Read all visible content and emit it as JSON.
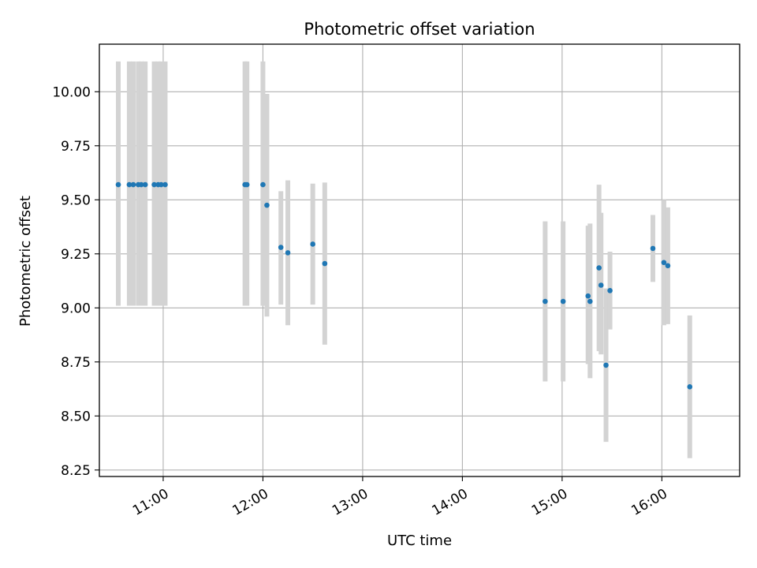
{
  "chart_data": {
    "type": "scatter",
    "title": "Photometric offset variation",
    "xlabel": "UTC time",
    "ylabel": "Photometric offset",
    "x_unit": "hours (UTC)",
    "xlim": [
      10.36,
      16.78
    ],
    "ylim": [
      8.22,
      10.22
    ],
    "grid": true,
    "x_ticks": [
      {
        "value": 11,
        "label": "11:00"
      },
      {
        "value": 12,
        "label": "12:00"
      },
      {
        "value": 13,
        "label": "13:00"
      },
      {
        "value": 14,
        "label": "14:00"
      },
      {
        "value": 15,
        "label": "15:00"
      },
      {
        "value": 16,
        "label": "16:00"
      }
    ],
    "y_ticks": [
      {
        "value": 8.25,
        "label": "8.25"
      },
      {
        "value": 8.5,
        "label": "8.50"
      },
      {
        "value": 8.75,
        "label": "8.75"
      },
      {
        "value": 9.0,
        "label": "9.00"
      },
      {
        "value": 9.25,
        "label": "9.25"
      },
      {
        "value": 9.5,
        "label": "9.50"
      },
      {
        "value": 9.75,
        "label": "9.75"
      },
      {
        "value": 10.0,
        "label": "10.00"
      }
    ],
    "marker_color": "#1f77b4",
    "errorbar_color": "#d3d3d3",
    "points": [
      {
        "x": 10.55,
        "y": 9.57,
        "yerr_low": 9.01,
        "yerr_high": 10.14
      },
      {
        "x": 10.66,
        "y": 9.57,
        "yerr_low": 9.01,
        "yerr_high": 10.14
      },
      {
        "x": 10.7,
        "y": 9.57,
        "yerr_low": 9.01,
        "yerr_high": 10.14
      },
      {
        "x": 10.75,
        "y": 9.57,
        "yerr_low": 9.01,
        "yerr_high": 10.14
      },
      {
        "x": 10.78,
        "y": 9.57,
        "yerr_low": 9.01,
        "yerr_high": 10.14
      },
      {
        "x": 10.82,
        "y": 9.57,
        "yerr_low": 9.01,
        "yerr_high": 10.14
      },
      {
        "x": 10.91,
        "y": 9.57,
        "yerr_low": 9.01,
        "yerr_high": 10.14
      },
      {
        "x": 10.95,
        "y": 9.57,
        "yerr_low": 9.01,
        "yerr_high": 10.14
      },
      {
        "x": 10.98,
        "y": 9.57,
        "yerr_low": 9.01,
        "yerr_high": 10.14
      },
      {
        "x": 11.02,
        "y": 9.57,
        "yerr_low": 9.01,
        "yerr_high": 10.14
      },
      {
        "x": 11.82,
        "y": 9.57,
        "yerr_low": 9.01,
        "yerr_high": 10.14
      },
      {
        "x": 11.84,
        "y": 9.57,
        "yerr_low": 9.01,
        "yerr_high": 10.14
      },
      {
        "x": 12.0,
        "y": 9.57,
        "yerr_low": 9.01,
        "yerr_high": 10.14
      },
      {
        "x": 12.04,
        "y": 9.475,
        "yerr_low": 8.96,
        "yerr_high": 9.99
      },
      {
        "x": 12.18,
        "y": 9.28,
        "yerr_low": 9.015,
        "yerr_high": 9.54
      },
      {
        "x": 12.25,
        "y": 9.255,
        "yerr_low": 8.92,
        "yerr_high": 9.59
      },
      {
        "x": 12.5,
        "y": 9.295,
        "yerr_low": 9.015,
        "yerr_high": 9.575
      },
      {
        "x": 12.62,
        "y": 9.205,
        "yerr_low": 8.83,
        "yerr_high": 9.58
      },
      {
        "x": 14.83,
        "y": 9.03,
        "yerr_low": 8.66,
        "yerr_high": 9.4
      },
      {
        "x": 15.01,
        "y": 9.03,
        "yerr_low": 8.66,
        "yerr_high": 9.4
      },
      {
        "x": 15.26,
        "y": 9.055,
        "yerr_low": 8.74,
        "yerr_high": 9.38
      },
      {
        "x": 15.28,
        "y": 9.03,
        "yerr_low": 8.675,
        "yerr_high": 9.39
      },
      {
        "x": 15.37,
        "y": 9.185,
        "yerr_low": 8.8,
        "yerr_high": 9.57
      },
      {
        "x": 15.39,
        "y": 9.105,
        "yerr_low": 8.785,
        "yerr_high": 9.44
      },
      {
        "x": 15.44,
        "y": 8.735,
        "yerr_low": 8.38,
        "yerr_high": 9.09
      },
      {
        "x": 15.48,
        "y": 9.08,
        "yerr_low": 8.9,
        "yerr_high": 9.26
      },
      {
        "x": 15.91,
        "y": 9.275,
        "yerr_low": 9.12,
        "yerr_high": 9.43
      },
      {
        "x": 16.02,
        "y": 9.21,
        "yerr_low": 8.92,
        "yerr_high": 9.5
      },
      {
        "x": 16.06,
        "y": 9.195,
        "yerr_low": 8.925,
        "yerr_high": 9.465
      },
      {
        "x": 16.28,
        "y": 8.635,
        "yerr_low": 8.305,
        "yerr_high": 8.965
      }
    ]
  }
}
